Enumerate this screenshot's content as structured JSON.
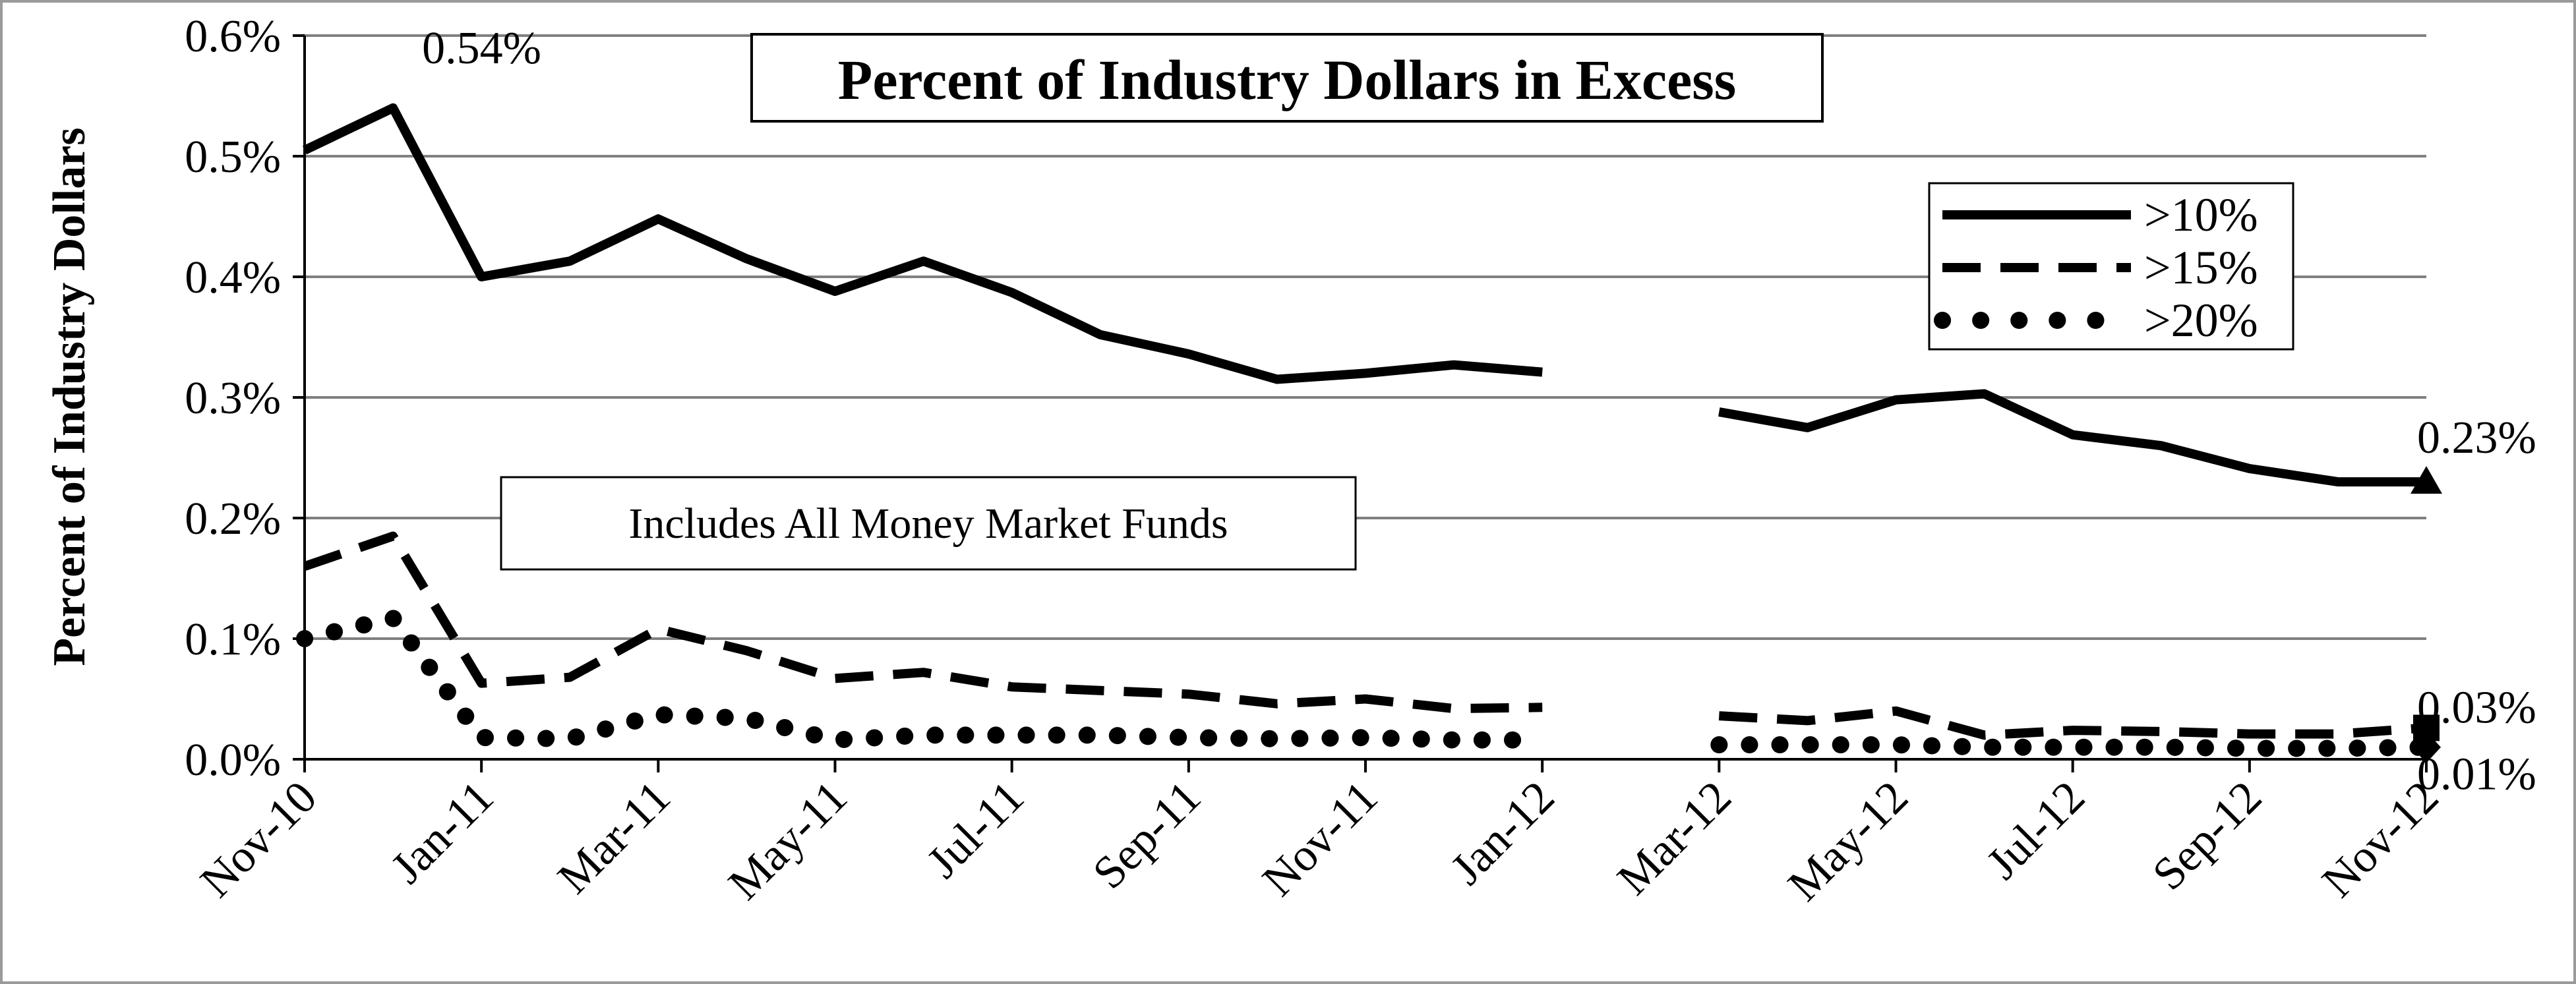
{
  "chart_data": {
    "type": "line",
    "title": "Percent of Industry Dollars in Excess",
    "subtitle": "Includes All Money Market Funds",
    "xlabel": "",
    "ylabel": "Percent of Industry Dollars",
    "ylim": [
      0,
      0.6
    ],
    "yticks": [
      0,
      0.1,
      0.2,
      0.3,
      0.4,
      0.5,
      0.6
    ],
    "ytick_labels": [
      "0.0%",
      "0.1%",
      "0.2%",
      "0.3%",
      "0.4%",
      "0.5%",
      "0.6%"
    ],
    "x": [
      "Nov-10",
      "Dec-10",
      "Jan-11",
      "Feb-11",
      "Mar-11",
      "Apr-11",
      "May-11",
      "Jun-11",
      "Jul-11",
      "Aug-11",
      "Sep-11",
      "Oct-11",
      "Nov-11",
      "Dec-11",
      "Jan-12",
      "Feb-12",
      "Mar-12",
      "Apr-12",
      "May-12",
      "Jun-12",
      "Jul-12",
      "Aug-12",
      "Sep-12",
      "Oct-12",
      "Nov-12"
    ],
    "xtick_labels": [
      "Nov-10",
      "Jan-11",
      "Mar-11",
      "May-11",
      "Jul-11",
      "Sep-11",
      "Nov-11",
      "Jan-12",
      "Mar-12",
      "May-12",
      "Jul-12",
      "Sep-12",
      "Nov-12"
    ],
    "grid": true,
    "legend_position": "upper-right",
    "series": [
      {
        "name": ">10%",
        "style": "solid",
        "end_marker": "triangle",
        "values": [
          0.505,
          0.54,
          0.4,
          0.413,
          0.448,
          0.415,
          0.388,
          0.413,
          0.387,
          0.352,
          0.336,
          0.315,
          0.32,
          0.327,
          0.321,
          null,
          0.288,
          0.275,
          0.298,
          0.303,
          0.269,
          0.26,
          0.241,
          0.23,
          0.23
        ]
      },
      {
        "name": ">15%",
        "style": "dashed",
        "end_marker": "square",
        "values": [
          0.16,
          0.185,
          0.063,
          0.068,
          0.108,
          0.09,
          0.067,
          0.072,
          0.06,
          0.057,
          0.054,
          0.046,
          0.05,
          0.042,
          0.043,
          null,
          0.036,
          0.032,
          0.04,
          0.02,
          0.024,
          0.023,
          0.021,
          0.021,
          0.026
        ]
      },
      {
        "name": ">20%",
        "style": "dotted",
        "end_marker": "diamond",
        "values": [
          0.1,
          0.117,
          0.018,
          0.017,
          0.037,
          0.034,
          0.016,
          0.02,
          0.02,
          0.02,
          0.018,
          0.017,
          0.018,
          0.016,
          0.016,
          null,
          0.012,
          0.012,
          0.012,
          0.01,
          0.01,
          0.01,
          0.009,
          0.009,
          0.01
        ]
      }
    ],
    "annotations": [
      {
        "text": "0.54%",
        "x": "Dec-10",
        "y": 0.54
      },
      {
        "text": "0.23%",
        "x": "Nov-12",
        "y": 0.23
      },
      {
        "text": "0.03%",
        "x": "Nov-12",
        "y": 0.026
      },
      {
        "text": "0.01%",
        "x": "Nov-12",
        "y": 0.01
      }
    ],
    "colors": {
      "line": "#000000",
      "grid": "#808080",
      "background": "#ffffff"
    }
  }
}
